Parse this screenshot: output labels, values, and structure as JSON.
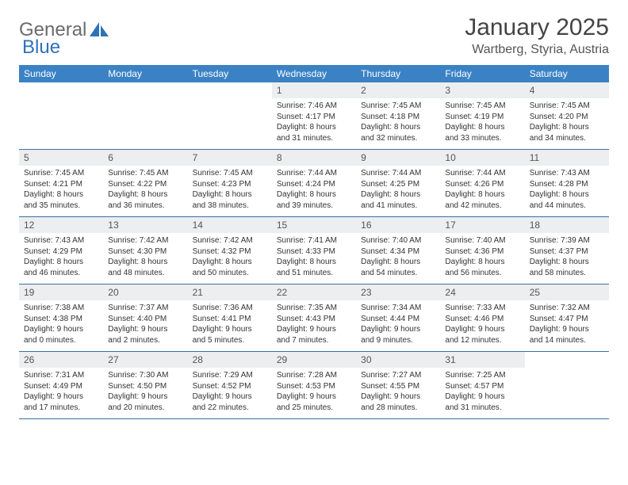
{
  "brand": {
    "text_gray": "General",
    "text_blue": "Blue"
  },
  "title": "January 2025",
  "location": "Wartberg, Styria, Austria",
  "colors": {
    "header_bg": "#3b82c4",
    "daynum_bg": "#eceeef",
    "rule": "#3b6fa0",
    "text": "#333333",
    "muted": "#555555",
    "logo_gray": "#6b6b6b",
    "logo_blue": "#2f72b8",
    "white": "#ffffff"
  },
  "typography": {
    "title_fontsize": 30,
    "location_fontsize": 16,
    "dow_fontsize": 12,
    "daynum_fontsize": 12,
    "body_fontsize": 10
  },
  "dow": [
    "Sunday",
    "Monday",
    "Tuesday",
    "Wednesday",
    "Thursday",
    "Friday",
    "Saturday"
  ],
  "weeks": [
    [
      {
        "n": "",
        "lines": [
          "",
          "",
          "",
          ""
        ]
      },
      {
        "n": "",
        "lines": [
          "",
          "",
          "",
          ""
        ]
      },
      {
        "n": "",
        "lines": [
          "",
          "",
          "",
          ""
        ]
      },
      {
        "n": "1",
        "lines": [
          "Sunrise: 7:46 AM",
          "Sunset: 4:17 PM",
          "Daylight: 8 hours",
          "and 31 minutes."
        ]
      },
      {
        "n": "2",
        "lines": [
          "Sunrise: 7:45 AM",
          "Sunset: 4:18 PM",
          "Daylight: 8 hours",
          "and 32 minutes."
        ]
      },
      {
        "n": "3",
        "lines": [
          "Sunrise: 7:45 AM",
          "Sunset: 4:19 PM",
          "Daylight: 8 hours",
          "and 33 minutes."
        ]
      },
      {
        "n": "4",
        "lines": [
          "Sunrise: 7:45 AM",
          "Sunset: 4:20 PM",
          "Daylight: 8 hours",
          "and 34 minutes."
        ]
      }
    ],
    [
      {
        "n": "5",
        "lines": [
          "Sunrise: 7:45 AM",
          "Sunset: 4:21 PM",
          "Daylight: 8 hours",
          "and 35 minutes."
        ]
      },
      {
        "n": "6",
        "lines": [
          "Sunrise: 7:45 AM",
          "Sunset: 4:22 PM",
          "Daylight: 8 hours",
          "and 36 minutes."
        ]
      },
      {
        "n": "7",
        "lines": [
          "Sunrise: 7:45 AM",
          "Sunset: 4:23 PM",
          "Daylight: 8 hours",
          "and 38 minutes."
        ]
      },
      {
        "n": "8",
        "lines": [
          "Sunrise: 7:44 AM",
          "Sunset: 4:24 PM",
          "Daylight: 8 hours",
          "and 39 minutes."
        ]
      },
      {
        "n": "9",
        "lines": [
          "Sunrise: 7:44 AM",
          "Sunset: 4:25 PM",
          "Daylight: 8 hours",
          "and 41 minutes."
        ]
      },
      {
        "n": "10",
        "lines": [
          "Sunrise: 7:44 AM",
          "Sunset: 4:26 PM",
          "Daylight: 8 hours",
          "and 42 minutes."
        ]
      },
      {
        "n": "11",
        "lines": [
          "Sunrise: 7:43 AM",
          "Sunset: 4:28 PM",
          "Daylight: 8 hours",
          "and 44 minutes."
        ]
      }
    ],
    [
      {
        "n": "12",
        "lines": [
          "Sunrise: 7:43 AM",
          "Sunset: 4:29 PM",
          "Daylight: 8 hours",
          "and 46 minutes."
        ]
      },
      {
        "n": "13",
        "lines": [
          "Sunrise: 7:42 AM",
          "Sunset: 4:30 PM",
          "Daylight: 8 hours",
          "and 48 minutes."
        ]
      },
      {
        "n": "14",
        "lines": [
          "Sunrise: 7:42 AM",
          "Sunset: 4:32 PM",
          "Daylight: 8 hours",
          "and 50 minutes."
        ]
      },
      {
        "n": "15",
        "lines": [
          "Sunrise: 7:41 AM",
          "Sunset: 4:33 PM",
          "Daylight: 8 hours",
          "and 51 minutes."
        ]
      },
      {
        "n": "16",
        "lines": [
          "Sunrise: 7:40 AM",
          "Sunset: 4:34 PM",
          "Daylight: 8 hours",
          "and 54 minutes."
        ]
      },
      {
        "n": "17",
        "lines": [
          "Sunrise: 7:40 AM",
          "Sunset: 4:36 PM",
          "Daylight: 8 hours",
          "and 56 minutes."
        ]
      },
      {
        "n": "18",
        "lines": [
          "Sunrise: 7:39 AM",
          "Sunset: 4:37 PM",
          "Daylight: 8 hours",
          "and 58 minutes."
        ]
      }
    ],
    [
      {
        "n": "19",
        "lines": [
          "Sunrise: 7:38 AM",
          "Sunset: 4:38 PM",
          "Daylight: 9 hours",
          "and 0 minutes."
        ]
      },
      {
        "n": "20",
        "lines": [
          "Sunrise: 7:37 AM",
          "Sunset: 4:40 PM",
          "Daylight: 9 hours",
          "and 2 minutes."
        ]
      },
      {
        "n": "21",
        "lines": [
          "Sunrise: 7:36 AM",
          "Sunset: 4:41 PM",
          "Daylight: 9 hours",
          "and 5 minutes."
        ]
      },
      {
        "n": "22",
        "lines": [
          "Sunrise: 7:35 AM",
          "Sunset: 4:43 PM",
          "Daylight: 9 hours",
          "and 7 minutes."
        ]
      },
      {
        "n": "23",
        "lines": [
          "Sunrise: 7:34 AM",
          "Sunset: 4:44 PM",
          "Daylight: 9 hours",
          "and 9 minutes."
        ]
      },
      {
        "n": "24",
        "lines": [
          "Sunrise: 7:33 AM",
          "Sunset: 4:46 PM",
          "Daylight: 9 hours",
          "and 12 minutes."
        ]
      },
      {
        "n": "25",
        "lines": [
          "Sunrise: 7:32 AM",
          "Sunset: 4:47 PM",
          "Daylight: 9 hours",
          "and 14 minutes."
        ]
      }
    ],
    [
      {
        "n": "26",
        "lines": [
          "Sunrise: 7:31 AM",
          "Sunset: 4:49 PM",
          "Daylight: 9 hours",
          "and 17 minutes."
        ]
      },
      {
        "n": "27",
        "lines": [
          "Sunrise: 7:30 AM",
          "Sunset: 4:50 PM",
          "Daylight: 9 hours",
          "and 20 minutes."
        ]
      },
      {
        "n": "28",
        "lines": [
          "Sunrise: 7:29 AM",
          "Sunset: 4:52 PM",
          "Daylight: 9 hours",
          "and 22 minutes."
        ]
      },
      {
        "n": "29",
        "lines": [
          "Sunrise: 7:28 AM",
          "Sunset: 4:53 PM",
          "Daylight: 9 hours",
          "and 25 minutes."
        ]
      },
      {
        "n": "30",
        "lines": [
          "Sunrise: 7:27 AM",
          "Sunset: 4:55 PM",
          "Daylight: 9 hours",
          "and 28 minutes."
        ]
      },
      {
        "n": "31",
        "lines": [
          "Sunrise: 7:25 AM",
          "Sunset: 4:57 PM",
          "Daylight: 9 hours",
          "and 31 minutes."
        ]
      },
      {
        "n": "",
        "lines": [
          "",
          "",
          "",
          ""
        ]
      }
    ]
  ]
}
